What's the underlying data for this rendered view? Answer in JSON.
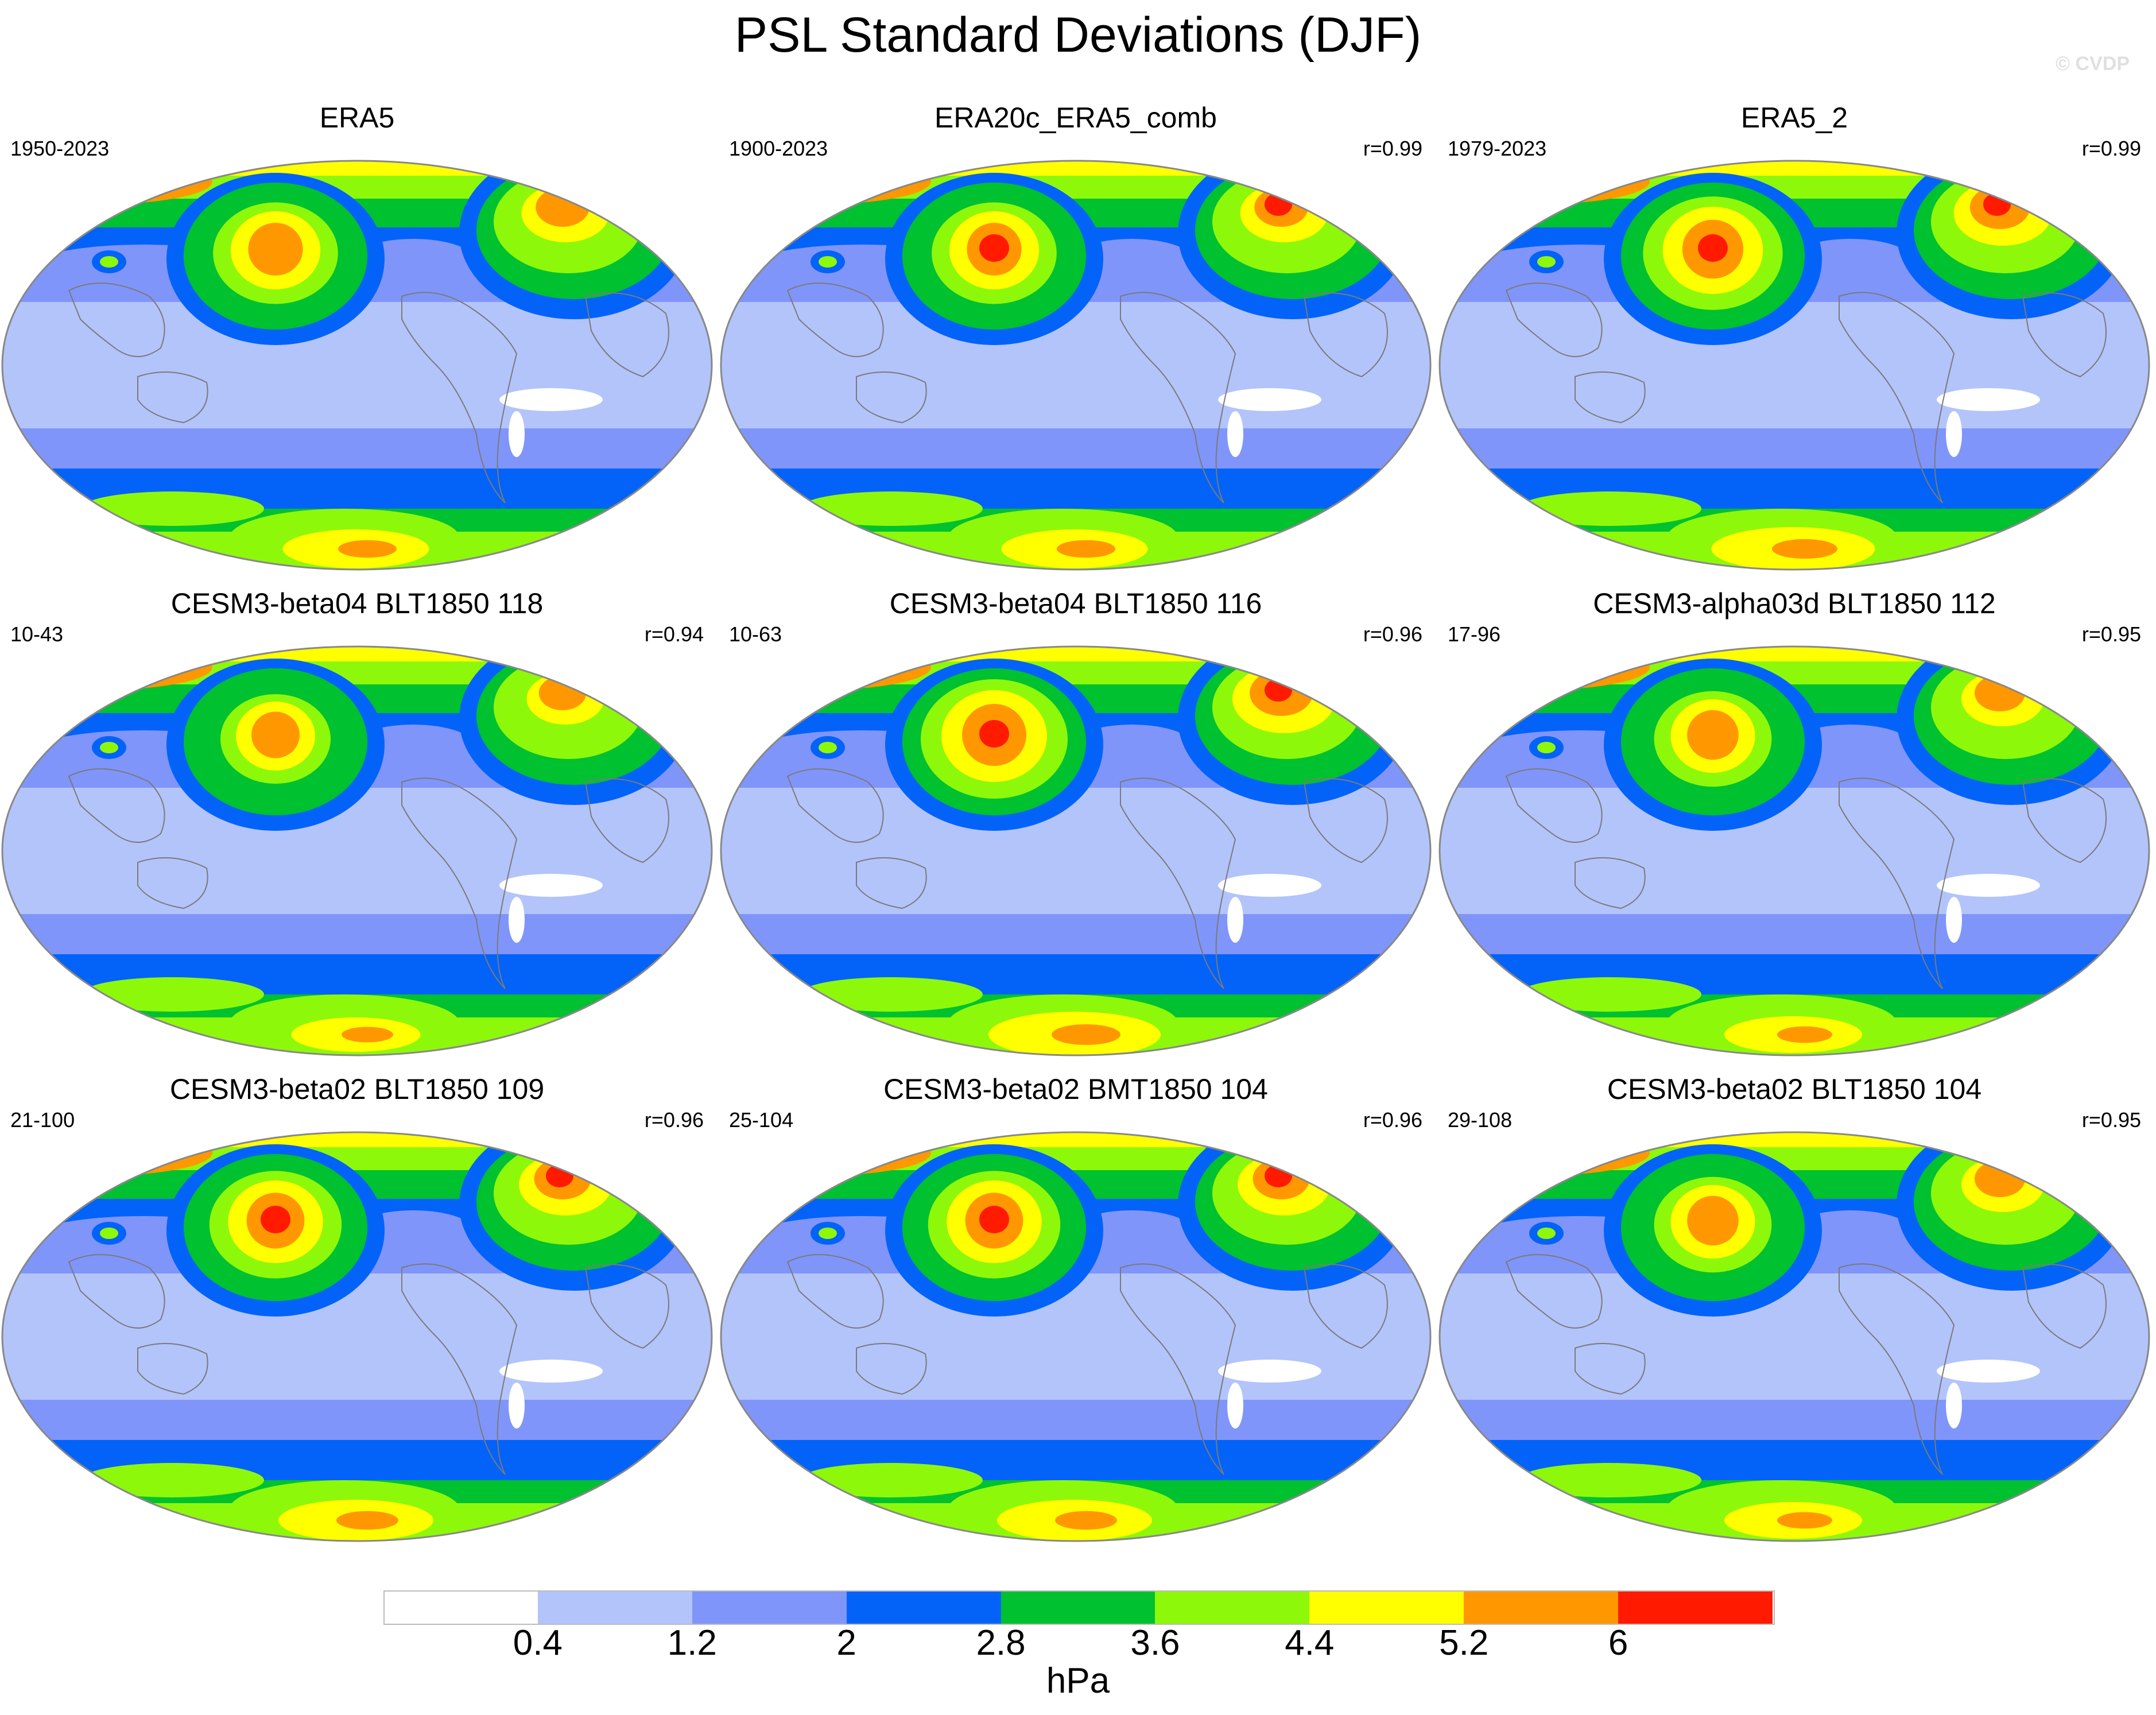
{
  "title": "PSL Standard Deviations (DJF)",
  "credit": "© CVDP",
  "panels": [
    {
      "name": "ERA5",
      "range": "1950-2023",
      "r": "",
      "intensity": 0.85,
      "red": false
    },
    {
      "name": "ERA20c_ERA5_comb",
      "range": "1900-2023",
      "r": "r=0.99",
      "intensity": 0.85,
      "red": true
    },
    {
      "name": "ERA5_2",
      "range": "1979-2023",
      "r": "r=0.99",
      "intensity": 0.95,
      "red": true
    },
    {
      "name": "CESM3-beta04 BLT1850 118",
      "range": "10-43",
      "r": "r=0.94",
      "intensity": 0.75,
      "red": false
    },
    {
      "name": "CESM3-beta04 BLT1850 116",
      "range": "10-63",
      "r": "r=0.96",
      "intensity": 1.0,
      "red": true
    },
    {
      "name": "CESM3-alpha03d BLT1850 112",
      "range": "17-96",
      "r": "r=0.95",
      "intensity": 0.8,
      "red": false
    },
    {
      "name": "CESM3-beta02 BLT1850 109",
      "range": "21-100",
      "r": "r=0.96",
      "intensity": 0.9,
      "red": true
    },
    {
      "name": "CESM3-beta02 BMT1850 104",
      "range": "25-104",
      "r": "r=0.96",
      "intensity": 0.9,
      "red": true
    },
    {
      "name": "CESM3-beta02 BLT1850 104",
      "range": "29-108",
      "r": "r=0.95",
      "intensity": 0.8,
      "red": false
    }
  ],
  "colorbar": {
    "colors": [
      "#ffffff",
      "#b3c4fb",
      "#8095f9",
      "#0363f8",
      "#00c12f",
      "#8ef80a",
      "#ffff00",
      "#ff9800",
      "#ff1a00"
    ],
    "labels": [
      "0.4",
      "1.2",
      "2",
      "2.8",
      "3.6",
      "4.4",
      "5.2",
      "6"
    ],
    "unit": "hPa"
  }
}
